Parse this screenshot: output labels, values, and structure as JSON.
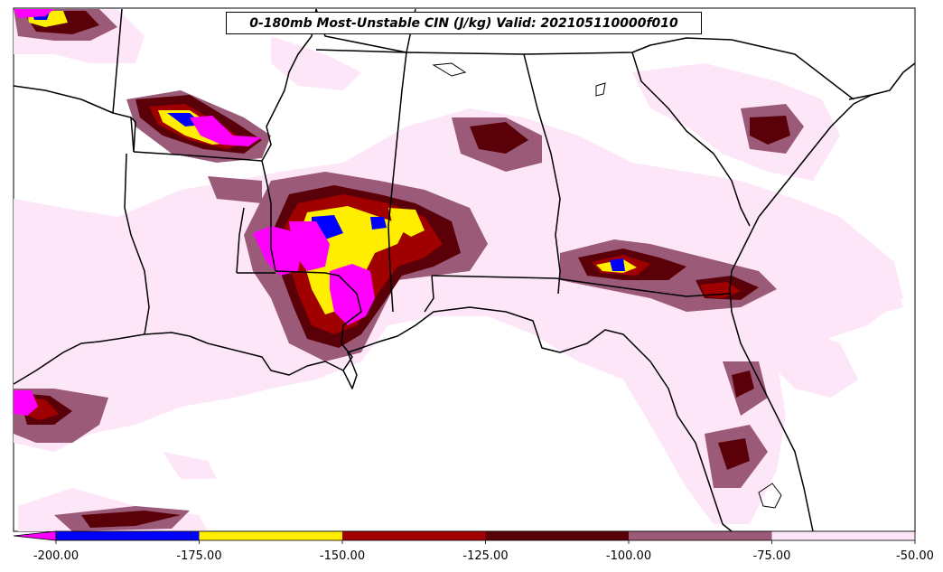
{
  "title": "0-180mb Most-Unstable CIN (J/kg) Valid: 202105110000f010",
  "colorbar": {
    "labels": [
      "-200.00",
      "-175.00",
      "-150.00",
      "-125.00",
      "-100.00",
      "-75.00",
      "-50.00"
    ],
    "colors": [
      "#ff00ff",
      "#0000ff",
      "#ffee00",
      "#a00000",
      "#5a0008",
      "#9a5a78",
      "#fde6f8"
    ],
    "extend": "min"
  },
  "map": {
    "region": "Southeastern United States",
    "land_color": "#ffffff",
    "border_color": "#000000"
  }
}
